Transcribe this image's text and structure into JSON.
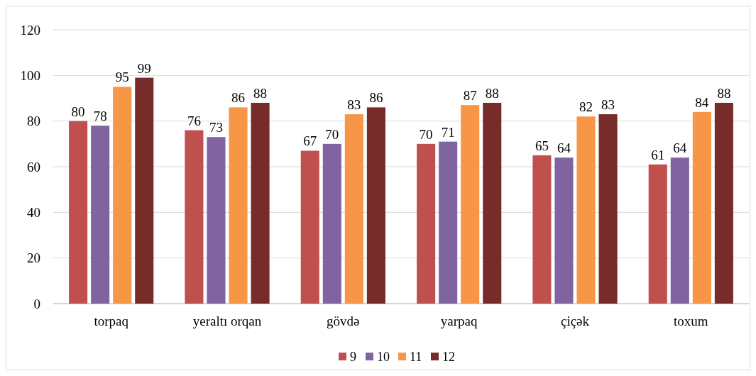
{
  "chart_data": {
    "type": "bar",
    "categories": [
      "torpaq",
      "yeraltı orqan",
      "gövdə",
      "yarpaq",
      "çiçək",
      "toxum"
    ],
    "series": [
      {
        "name": "9",
        "color": "#c0504d",
        "values": [
          80,
          76,
          67,
          70,
          65,
          61
        ]
      },
      {
        "name": "10",
        "color": "#8064a2",
        "values": [
          78,
          73,
          70,
          71,
          64,
          64
        ]
      },
      {
        "name": "11",
        "color": "#f79646",
        "values": [
          95,
          86,
          83,
          87,
          82,
          84
        ]
      },
      {
        "name": "12",
        "color": "#772c2a",
        "values": [
          99,
          88,
          86,
          88,
          83,
          88
        ]
      }
    ],
    "ylim": [
      0,
      120
    ],
    "yticks": [
      0,
      20,
      40,
      60,
      80,
      100,
      120
    ],
    "grid": "y",
    "legend": "bottom",
    "data_labels": true
  }
}
